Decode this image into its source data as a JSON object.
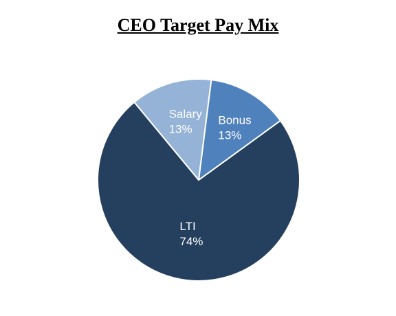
{
  "chart_data": {
    "type": "pie",
    "title": "CEO Target Pay Mix",
    "slices": [
      {
        "name": "LTI",
        "value": 74,
        "value_label": "74%",
        "color": "#253f5e"
      },
      {
        "name": "Salary",
        "value": 13,
        "value_label": "13%",
        "color": "#95b3d7"
      },
      {
        "name": "Bonus",
        "value": 13,
        "value_label": "13%",
        "color": "#4f81bd"
      }
    ],
    "start_angle_deg": -36,
    "direction": "clockwise",
    "slice_border_color": "#ffffff",
    "legend": "none"
  }
}
